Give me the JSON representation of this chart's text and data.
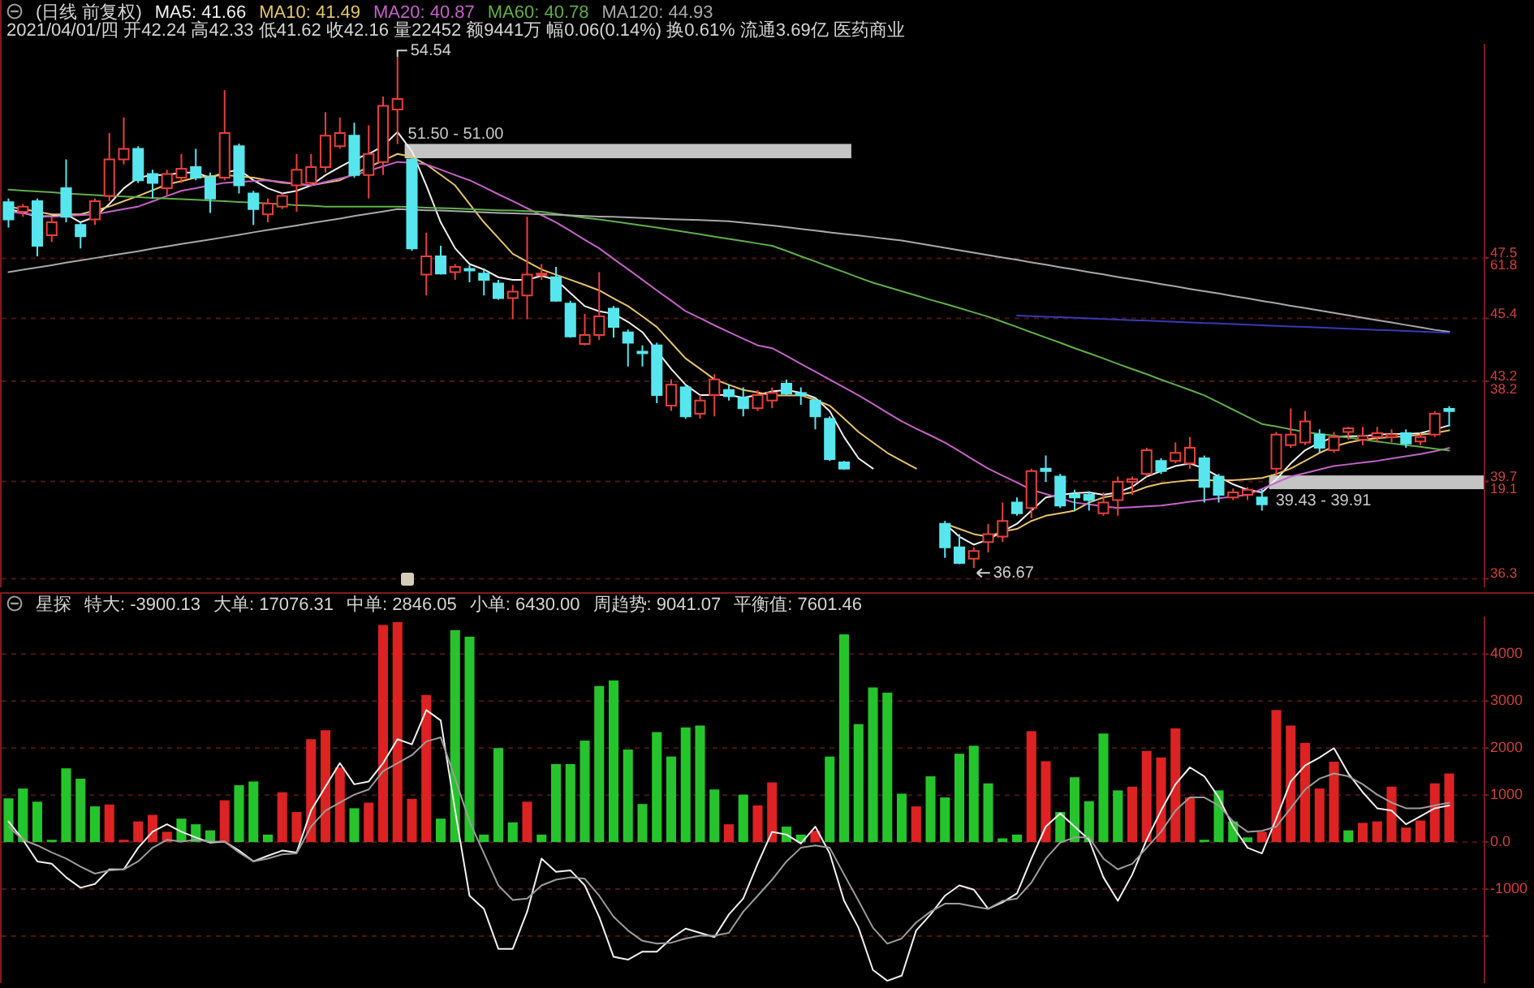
{
  "chart_data": [
    {
      "type": "candlestick",
      "title": "(日线 前复权)",
      "subtitle": "2021/04/01/四 开42.24 高42.33 低41.62 收42.16 量22452 额9441万 幅0.06(0.14%) 换0.61% 流通3.69亿 医药商业",
      "legend": "top left",
      "grid": "y",
      "ylim": [
        36,
        55
      ],
      "yticks": [
        47.5,
        45.4,
        43.2,
        39.7,
        36.3
      ],
      "y2lim": [
        -1.1,
        102.6
      ],
      "y2ticks": [
        61.8,
        38.2,
        19.1
      ],
      "categories": [
        null,
        null,
        null,
        null,
        null,
        null,
        null,
        null,
        null,
        null,
        null,
        null,
        null,
        null,
        null,
        null,
        null,
        null,
        null,
        null,
        null,
        null,
        null,
        null,
        null,
        null,
        null,
        null,
        null,
        null,
        null,
        null,
        null,
        null,
        null,
        null,
        null,
        null,
        null,
        null,
        null,
        null,
        null,
        null,
        null,
        null,
        null,
        null,
        null,
        null,
        null,
        null,
        null,
        null,
        null,
        null,
        null,
        null,
        null,
        null,
        null,
        null,
        null,
        null,
        null,
        null,
        null,
        null,
        null,
        null,
        null,
        null,
        null,
        null,
        null,
        null,
        null,
        null,
        null,
        null,
        null,
        null,
        null,
        null,
        null,
        null,
        null,
        null,
        null,
        null,
        null,
        null,
        null,
        null,
        null,
        null,
        null,
        null,
        null,
        null,
        null
      ],
      "ohlc": [
        [
          49.46,
          49.59,
          48.58,
          48.86
        ],
        [
          49.13,
          49.4,
          48.95,
          49.31
        ],
        [
          49.5,
          49.59,
          47.57,
          47.94
        ],
        [
          48.31,
          48.95,
          48.07,
          48.76
        ],
        [
          49.95,
          50.96,
          48.76,
          48.95
        ],
        [
          48.67,
          48.76,
          47.85,
          48.27
        ],
        [
          48.86,
          49.59,
          48.67,
          49.5
        ],
        [
          49.68,
          51.88,
          49.5,
          50.96
        ],
        [
          50.96,
          52.43,
          50.78,
          51.33
        ],
        [
          51.33,
          51.42,
          50.14,
          50.23
        ],
        [
          50.45,
          50.6,
          49.59,
          50.14
        ],
        [
          49.95,
          50.6,
          49.68,
          50.45
        ],
        [
          50.32,
          51.15,
          50.14,
          50.63
        ],
        [
          50.69,
          51.33,
          50.23,
          50.32
        ],
        [
          50.32,
          50.5,
          49.09,
          49.59
        ],
        [
          50.32,
          53.38,
          50.23,
          51.88
        ],
        [
          51.42,
          51.51,
          49.77,
          50.05
        ],
        [
          49.77,
          49.86,
          48.67,
          49.22
        ],
        [
          49.04,
          49.59,
          48.76,
          49.41
        ],
        [
          49.31,
          49.77,
          49.22,
          49.68
        ],
        [
          50.05,
          51.15,
          49.13,
          50.6
        ],
        [
          50.14,
          51.15,
          50.05,
          50.69
        ],
        [
          50.69,
          52.61,
          50.5,
          51.79
        ],
        [
          51.42,
          52.43,
          51.33,
          51.88
        ],
        [
          51.79,
          52.24,
          50.32,
          50.41
        ],
        [
          50.41,
          52.15,
          49.59,
          51.15
        ],
        [
          50.87,
          53.16,
          50.41,
          52.83
        ],
        [
          52.7,
          54.54,
          51.5,
          53.07
        ],
        [
          50.96,
          51.0,
          47.76,
          47.85
        ],
        [
          46.93,
          48.4,
          46.2,
          47.57
        ],
        [
          47.57,
          47.94,
          46.93,
          46.97
        ],
        [
          47.02,
          47.3,
          46.75,
          47.2
        ],
        [
          47.13,
          47.26,
          46.66,
          47.11
        ],
        [
          46.97,
          47.11,
          46.2,
          46.75
        ],
        [
          46.62,
          46.75,
          46.05,
          46.11
        ],
        [
          46.11,
          46.57,
          45.37,
          46.34
        ],
        [
          46.2,
          48.95,
          45.37,
          46.93
        ],
        [
          46.93,
          47.3,
          46.75,
          46.97
        ],
        [
          46.84,
          47.2,
          45.98,
          46.02
        ],
        [
          45.92,
          46.02,
          44.73,
          44.77
        ],
        [
          44.51,
          45.56,
          44.46,
          44.82
        ],
        [
          44.82,
          47.02,
          44.64,
          45.47
        ],
        [
          45.74,
          45.83,
          44.73,
          45.1
        ],
        [
          44.91,
          45.01,
          43.72,
          44.55
        ],
        [
          44.24,
          44.46,
          43.72,
          44.22
        ],
        [
          44.46,
          44.55,
          42.44,
          42.72
        ],
        [
          42.35,
          43.27,
          42.17,
          43.08
        ],
        [
          42.99,
          43.08,
          41.89,
          41.98
        ],
        [
          42.07,
          42.72,
          41.89,
          42.53
        ],
        [
          42.72,
          43.45,
          41.98,
          43.27
        ],
        [
          42.9,
          43.08,
          42.53,
          42.68
        ],
        [
          42.63,
          42.99,
          41.98,
          42.26
        ],
        [
          42.26,
          42.9,
          42.17,
          42.72
        ],
        [
          42.53,
          42.99,
          42.26,
          42.8
        ],
        [
          43.12,
          43.26,
          42.71,
          42.77
        ],
        [
          42.79,
          42.99,
          42.38,
          42.72
        ],
        [
          42.53,
          42.62,
          41.52,
          41.98
        ],
        [
          41.89,
          41.98,
          40.42,
          40.48
        ],
        [
          40.37,
          40.42,
          40.11,
          40.15
        ],
        null,
        null,
        null,
        null,
        null,
        null,
        [
          38.22,
          38.32,
          37.03,
          37.4
        ],
        [
          37.4,
          37.86,
          36.81,
          36.85
        ],
        [
          37.0,
          37.4,
          36.67,
          37.27
        ],
        [
          37.58,
          38.22,
          37.22,
          37.86
        ],
        [
          37.77,
          38.96,
          37.58,
          38.32
        ],
        [
          38.96,
          39.14,
          38.5,
          38.59
        ],
        [
          38.77,
          40.15,
          38.41,
          40.06
        ],
        [
          40.15,
          40.61,
          39.69,
          40.06
        ],
        [
          39.87,
          39.96,
          38.77,
          38.86
        ],
        [
          39.23,
          39.41,
          38.68,
          39.14
        ],
        [
          39.23,
          39.36,
          38.68,
          39.05
        ],
        [
          38.59,
          39.32,
          38.5,
          38.96
        ],
        [
          39.05,
          39.87,
          38.5,
          39.69
        ],
        [
          39.69,
          39.87,
          39.23,
          39.78
        ],
        [
          39.96,
          40.88,
          39.87,
          40.79
        ],
        [
          40.42,
          40.51,
          39.96,
          40.06
        ],
        [
          40.42,
          41.06,
          40.33,
          40.7
        ],
        [
          40.33,
          41.25,
          40.15,
          40.88
        ],
        [
          40.51,
          40.61,
          38.96,
          39.51
        ],
        [
          39.87,
          39.96,
          38.96,
          39.23
        ],
        [
          39.14,
          39.45,
          39.05,
          39.32
        ],
        [
          39.23,
          39.5,
          39.05,
          39.41
        ],
        [
          39.14,
          39.43,
          38.68,
          38.9
        ],
        [
          40.15,
          41.43,
          39.91,
          41.34
        ],
        [
          40.97,
          42.25,
          40.88,
          41.34
        ],
        [
          41.06,
          42.16,
          40.97,
          41.8
        ],
        [
          41.34,
          41.52,
          40.7,
          40.88
        ],
        [
          40.79,
          41.43,
          40.7,
          41.25
        ],
        [
          41.43,
          41.61,
          41.16,
          41.56
        ],
        [
          41.16,
          41.61,
          40.97,
          41.29
        ],
        [
          41.25,
          41.61,
          41.06,
          41.39
        ],
        [
          41.25,
          41.52,
          41.06,
          41.34
        ],
        [
          41.39,
          41.52,
          40.88,
          41.03
        ],
        [
          41.1,
          41.39,
          40.97,
          41.25
        ],
        [
          41.34,
          42.16,
          41.25,
          42.07
        ],
        [
          42.24,
          42.33,
          41.62,
          42.16
        ]
      ],
      "value_labels": [
        null,
        null,
        null,
        null,
        null,
        null,
        null,
        null,
        null,
        null,
        null,
        null,
        null,
        null,
        null,
        null,
        null,
        null,
        null,
        null,
        null,
        null,
        null,
        null,
        null,
        null,
        null,
        "54.54",
        null,
        null,
        null,
        null,
        null,
        null,
        null,
        null,
        null,
        null,
        null,
        null,
        null,
        null,
        null,
        null,
        null,
        null,
        null,
        null,
        null,
        null,
        null,
        null,
        null,
        null,
        null,
        null,
        null,
        null,
        null,
        null,
        null,
        null,
        null,
        null,
        null,
        null,
        null,
        "36.67",
        null,
        null,
        null,
        null,
        null,
        null,
        null,
        null,
        null,
        null,
        null,
        null,
        null,
        null,
        null,
        null,
        null,
        null,
        null,
        null,
        null,
        null,
        null,
        null,
        null,
        null,
        null,
        null,
        null,
        null,
        null,
        null,
        null
      ],
      "series": [
        {
          "name": "MA5: 41.66",
          "type": "line",
          "color": "#f0f0f0",
          "values": [
            49.22,
            49.1,
            48.95,
            48.98,
            49.04,
            48.76,
            48.95,
            49.4,
            49.95,
            50.32,
            50.41,
            50.41,
            50.5,
            50.5,
            50.32,
            50.5,
            50.6,
            50.23,
            49.95,
            49.77,
            49.86,
            50.05,
            50.41,
            50.69,
            50.96,
            51.15,
            51.42,
            51.92,
            51.24,
            50.05,
            48.76,
            47.85,
            47.3,
            47.11,
            46.84,
            46.75,
            46.75,
            46.89,
            46.75,
            46.29,
            45.83,
            45.65,
            45.56,
            45.28,
            44.92,
            44.27,
            43.63,
            43.08,
            42.72,
            42.72,
            42.72,
            42.63,
            42.72,
            42.85,
            42.9,
            42.8,
            42.62,
            42.16,
            41.25,
            40.51,
            40.15,
            null,
            null,
            null,
            null,
            38.22,
            37.77,
            37.49,
            37.67,
            37.95,
            38.22,
            38.68,
            39.14,
            39.23,
            39.29,
            39.32,
            39.23,
            39.32,
            39.51,
            39.87,
            40.06,
            40.24,
            40.33,
            40.15,
            39.87,
            39.6,
            39.41,
            39.32,
            39.78,
            40.33,
            40.79,
            41.06,
            41.25,
            41.28,
            41.28,
            41.34,
            41.36,
            41.36,
            41.39,
            41.52,
            41.66
          ]
        },
        {
          "name": "MA10: 41.49",
          "type": "line",
          "color": "#e6c36a",
          "values": [
            49.31,
            49.22,
            49.13,
            49.04,
            49.04,
            49.04,
            49.17,
            49.31,
            49.5,
            49.68,
            49.88,
            50.08,
            50.2,
            50.32,
            50.37,
            50.41,
            50.37,
            50.32,
            50.23,
            50.14,
            50.1,
            50.05,
            50.14,
            50.23,
            50.46,
            50.69,
            50.92,
            51.15,
            51.05,
            50.78,
            50.42,
            50.05,
            49.4,
            48.76,
            48.21,
            47.66,
            47.38,
            47.11,
            46.93,
            46.75,
            46.57,
            46.38,
            46.1,
            45.83,
            45.47,
            45.1,
            44.55,
            44.0,
            43.64,
            43.27,
            43.08,
            42.9,
            42.81,
            42.71,
            42.71,
            42.71,
            42.55,
            42.35,
            41.9,
            41.43,
            41.06,
            40.7,
            40.42,
            40.15,
            null,
            38.22,
            38.04,
            37.86,
            37.77,
            37.95,
            38.04,
            38.32,
            38.5,
            38.59,
            38.68,
            38.96,
            39.14,
            39.23,
            39.32,
            39.51,
            39.63,
            39.69,
            39.74,
            39.74,
            39.74,
            39.74,
            39.78,
            39.82,
            39.96,
            40.15,
            40.42,
            40.7,
            40.92,
            41.06,
            41.16,
            41.21,
            41.25,
            41.28,
            41.34,
            41.39,
            41.49
          ]
        },
        {
          "name": "MA20: 40.87",
          "type": "line",
          "color": "#c462c8",
          "values": [
            49.13,
            49.07,
            49.01,
            48.95,
            48.98,
            49.01,
            49.04,
            49.13,
            49.22,
            49.31,
            49.49,
            49.68,
            49.86,
            49.95,
            50.05,
            50.14,
            50.17,
            50.2,
            50.23,
            50.17,
            50.11,
            50.05,
            50.17,
            50.29,
            50.41,
            50.56,
            50.72,
            50.87,
            50.84,
            50.78,
            50.6,
            50.41,
            50.23,
            49.99,
            49.74,
            49.5,
            49.25,
            49.01,
            48.76,
            48.46,
            48.15,
            47.85,
            47.48,
            47.12,
            46.75,
            46.38,
            46.02,
            45.65,
            45.41,
            45.16,
            44.92,
            44.69,
            44.46,
            44.36,
            44.09,
            43.81,
            43.54,
            43.26,
            42.99,
            42.71,
            42.41,
            42.1,
            41.8,
            41.55,
            41.31,
            41.06,
            40.76,
            40.45,
            40.15,
            39.9,
            39.66,
            39.41,
            39.26,
            39.11,
            38.96,
            38.9,
            38.83,
            38.77,
            38.8,
            38.83,
            38.86,
            38.92,
            38.99,
            39.05,
            39.11,
            39.17,
            39.23,
            39.44,
            39.66,
            39.87,
            39.99,
            40.12,
            40.24,
            40.3,
            40.36,
            40.42,
            40.5,
            40.58,
            40.66,
            40.76,
            40.87
          ]
        },
        {
          "name": "MA60: 40.78",
          "type": "line",
          "color": "#5fae4a",
          "values": [
            49.9,
            49.87,
            49.84,
            49.81,
            49.77,
            49.74,
            49.71,
            49.68,
            49.66,
            49.64,
            49.61,
            49.59,
            49.57,
            49.55,
            49.52,
            49.5,
            49.47,
            49.45,
            49.42,
            49.39,
            49.36,
            49.34,
            49.31,
            49.31,
            49.31,
            49.31,
            49.31,
            49.31,
            49.29,
            49.27,
            49.26,
            49.24,
            49.22,
            49.2,
            49.18,
            49.17,
            49.15,
            49.13,
            49.06,
            48.99,
            48.92,
            48.86,
            48.79,
            48.72,
            48.65,
            48.58,
            48.5,
            48.42,
            48.34,
            48.26,
            48.18,
            48.1,
            48.02,
            47.94,
            47.76,
            47.57,
            47.39,
            47.2,
            47.02,
            46.83,
            46.65,
            46.5,
            46.35,
            46.2,
            46.05,
            45.91,
            45.76,
            45.61,
            45.46,
            45.28,
            45.1,
            44.91,
            44.73,
            44.55,
            44.36,
            44.18,
            44.0,
            43.81,
            43.63,
            43.45,
            43.26,
            43.08,
            42.9,
            42.71,
            42.46,
            42.21,
            41.96,
            41.71,
            41.62,
            41.52,
            41.43,
            41.36,
            41.3,
            41.23,
            41.16,
            41.1,
            41.03,
            40.97,
            40.91,
            40.84,
            40.78
          ]
        },
        {
          "name": "MA120: 44.93",
          "type": "line",
          "color": "#a8a8a8",
          "values": [
            47.02,
            47.1,
            47.18,
            47.26,
            47.35,
            47.43,
            47.51,
            47.59,
            47.67,
            47.75,
            47.84,
            47.92,
            48.0,
            48.08,
            48.16,
            48.24,
            48.32,
            48.41,
            48.49,
            48.57,
            48.65,
            48.73,
            48.81,
            48.89,
            48.98,
            49.06,
            49.14,
            49.22,
            49.2,
            49.18,
            49.17,
            49.15,
            49.13,
            49.11,
            49.09,
            49.07,
            49.06,
            49.04,
            49.02,
            49.0,
            48.98,
            48.96,
            48.95,
            48.93,
            48.91,
            48.89,
            48.87,
            48.85,
            48.84,
            48.82,
            48.8,
            48.75,
            48.7,
            48.65,
            48.59,
            48.53,
            48.47,
            48.41,
            48.35,
            48.3,
            48.24,
            48.18,
            48.12,
            48.04,
            47.95,
            47.87,
            47.78,
            47.7,
            47.61,
            47.53,
            47.45,
            47.36,
            47.28,
            47.19,
            47.11,
            47.02,
            46.94,
            46.85,
            46.77,
            46.69,
            46.6,
            46.52,
            46.43,
            46.35,
            46.27,
            46.18,
            46.1,
            46.01,
            45.93,
            45.84,
            45.76,
            45.68,
            45.59,
            45.51,
            45.42,
            45.34,
            45.26,
            45.17,
            45.09,
            45.0,
            44.93
          ]
        },
        {
          "type": "line",
          "color": "#3838b8",
          "values": [
            null,
            null,
            null,
            null,
            null,
            null,
            null,
            null,
            null,
            null,
            null,
            null,
            null,
            null,
            null,
            null,
            null,
            null,
            null,
            null,
            null,
            null,
            null,
            null,
            null,
            null,
            null,
            null,
            null,
            null,
            null,
            null,
            null,
            null,
            null,
            null,
            null,
            null,
            null,
            null,
            null,
            null,
            null,
            null,
            null,
            null,
            null,
            null,
            null,
            null,
            null,
            null,
            null,
            null,
            null,
            null,
            null,
            null,
            null,
            null,
            null,
            null,
            null,
            null,
            null,
            null,
            null,
            null,
            null,
            null,
            45.5,
            45.48,
            45.46,
            45.44,
            45.42,
            45.4,
            45.38,
            45.36,
            45.34,
            45.32,
            45.3,
            45.28,
            45.26,
            45.24,
            45.22,
            45.2,
            45.18,
            45.16,
            45.14,
            45.12,
            45.1,
            45.08,
            45.06,
            45.04,
            45.02,
            45.0,
            44.98,
            44.96,
            44.94,
            44.92,
            44.9
          ]
        }
      ],
      "bands": [
        {
          "axis": "y",
          "from": 51.0,
          "to": 51.5,
          "label": "51.50 - 51.00",
          "color": "#c4c4c4"
        },
        {
          "axis": "y",
          "from": 39.43,
          "to": 39.91,
          "label": "39.43 - 39.91",
          "color": "#c4c4c4"
        }
      ]
    },
    {
      "type": "bar",
      "title": "星探",
      "grid": "y",
      "ylim": [
        -3000,
        4800
      ],
      "yticks": [
        4000,
        3000,
        2000,
        1000,
        {
          "value": 0,
          "label": "0.0"
        },
        -1000,
        {
          "value": -2000,
          "label": null
        }
      ],
      "categories": [
        null,
        null,
        null,
        null,
        null,
        null,
        null,
        null,
        null,
        null,
        null,
        null,
        null,
        null,
        null,
        null,
        null,
        null,
        null,
        null,
        null,
        null,
        null,
        null,
        null,
        null,
        null,
        null,
        null,
        null,
        null,
        null,
        null,
        null,
        null,
        null,
        null,
        null,
        null,
        null,
        null,
        null,
        null,
        null,
        null,
        null,
        null,
        null,
        null,
        null,
        null,
        null,
        null,
        null,
        null,
        null,
        null,
        null,
        null,
        null,
        null,
        null,
        null,
        null,
        null,
        null,
        null,
        null,
        null,
        null,
        null,
        null,
        null,
        null,
        null,
        null,
        null,
        null,
        null,
        null,
        null,
        null,
        null,
        null,
        null,
        null,
        null,
        null,
        null,
        null,
        null,
        null,
        null,
        null,
        null,
        null,
        null,
        null,
        null,
        null,
        null
      ],
      "series": [
        {
          "values": [
            930,
            1140,
            860,
            50,
            1570,
            1350,
            760,
            800,
            50,
            440,
            580,
            220,
            500,
            380,
            250,
            890,
            1210,
            1290,
            160,
            1060,
            640,
            2190,
            2380,
            1590,
            720,
            840,
            4620,
            4680,
            920,
            3130,
            500,
            4510,
            4370,
            160,
            2000,
            420,
            860,
            160,
            1660,
            1660,
            2160,
            3320,
            3440,
            1970,
            810,
            2340,
            1820,
            2440,
            2480,
            1120,
            380,
            1010,
            780,
            1270,
            330,
            160,
            240,
            1820,
            4420,
            2510,
            3290,
            3180,
            1030,
            760,
            1400,
            950,
            1880,
            2050,
            1250,
            80,
            160,
            2360,
            1720,
            640,
            1380,
            870,
            2310,
            1100,
            1180,
            1940,
            1800,
            2420,
            950,
            50,
            1100,
            440,
            100,
            220,
            2810,
            2480,
            2110,
            1140,
            1710,
            250,
            410,
            440,
            1180,
            310,
            460,
            1250,
            1460
          ],
          "colors": [
            "#26c42c",
            "#26c42c",
            "#26c42c",
            "#26c42c",
            "#26c42c",
            "#26c42c",
            "#26c42c",
            "#dc2222",
            "#dc2222",
            "#dc2222",
            "#dc2222",
            "#dc2222",
            "#26c42c",
            "#26c42c",
            "#26c42c",
            "#dc2222",
            "#26c42c",
            "#26c42c",
            "#26c42c",
            "#dc2222",
            "#dc2222",
            "#dc2222",
            "#dc2222",
            "#dc2222",
            "#26c42c",
            "#dc2222",
            "#dc2222",
            "#dc2222",
            "#dc2222",
            "#dc2222",
            "#26c42c",
            "#26c42c",
            "#26c42c",
            "#26c42c",
            "#26c42c",
            "#26c42c",
            "#dc2222",
            "#26c42c",
            "#26c42c",
            "#26c42c",
            "#26c42c",
            "#26c42c",
            "#26c42c",
            "#26c42c",
            "#26c42c",
            "#26c42c",
            "#26c42c",
            "#26c42c",
            "#26c42c",
            "#26c42c",
            "#dc2222",
            "#26c42c",
            "#dc2222",
            "#dc2222",
            "#26c42c",
            "#26c42c",
            "#dc2222",
            "#26c42c",
            "#26c42c",
            "#26c42c",
            "#26c42c",
            "#26c42c",
            "#26c42c",
            "#dc2222",
            "#26c42c",
            "#26c42c",
            "#26c42c",
            "#26c42c",
            "#26c42c",
            "#26c42c",
            "#26c42c",
            "#dc2222",
            "#dc2222",
            "#26c42c",
            "#26c42c",
            "#26c42c",
            "#26c42c",
            "#26c42c",
            "#dc2222",
            "#dc2222",
            "#dc2222",
            "#dc2222",
            "#dc2222",
            "#26c42c",
            "#26c42c",
            "#26c42c",
            "#26c42c",
            "#dc2222",
            "#dc2222",
            "#dc2222",
            "#dc2222",
            "#dc2222",
            "#dc2222",
            "#26c42c",
            "#dc2222",
            "#dc2222",
            "#dc2222",
            "#dc2222",
            "#dc2222",
            "#dc2222",
            "#dc2222"
          ]
        },
        {
          "type": "line",
          "color": "#f2f2f2",
          "values": [
            440,
            50,
            -410,
            -460,
            -750,
            -970,
            -890,
            -580,
            -580,
            -120,
            220,
            380,
            220,
            100,
            -10,
            10,
            -180,
            -410,
            -290,
            -180,
            -220,
            670,
            1180,
            1680,
            1230,
            1290,
            1680,
            2190,
            2080,
            2810,
            2590,
            670,
            -1140,
            -1420,
            -2270,
            -2270,
            -1480,
            -350,
            -630,
            -600,
            -920,
            -1590,
            -2440,
            -2500,
            -2330,
            -2330,
            -2050,
            -1840,
            -1930,
            -2020,
            -1540,
            -1200,
            -460,
            220,
            160,
            -30,
            330,
            -240,
            -1250,
            -1820,
            -2720,
            -2950,
            -2840,
            -1880,
            -1540,
            -1140,
            -920,
            -1010,
            -1420,
            -1280,
            -1090,
            -350,
            330,
            610,
            330,
            50,
            -750,
            -1250,
            -690,
            50,
            670,
            1230,
            1590,
            1400,
            950,
            330,
            -120,
            -240,
            500,
            1290,
            1630,
            1800,
            2000,
            1460,
            1060,
            720,
            670,
            380,
            550,
            720,
            780
          ]
        },
        {
          "type": "line",
          "color": "#9c9c9c",
          "values": [
            330,
            50,
            -70,
            -220,
            -350,
            -520,
            -670,
            -600,
            -580,
            -410,
            -120,
            50,
            10,
            50,
            10,
            10,
            -220,
            -410,
            -350,
            -260,
            -240,
            330,
            670,
            840,
            1010,
            1120,
            1510,
            1680,
            1850,
            2140,
            2230,
            1350,
            440,
            -240,
            -920,
            -1230,
            -1200,
            -920,
            -800,
            -750,
            -780,
            -1140,
            -1590,
            -1880,
            -2100,
            -2160,
            -2140,
            -2050,
            -1990,
            -1990,
            -1930,
            -1480,
            -1140,
            -800,
            -410,
            -120,
            -70,
            -120,
            -690,
            -1250,
            -1820,
            -2160,
            -2050,
            -1710,
            -1480,
            -1310,
            -1310,
            -1370,
            -1420,
            -1250,
            -1200,
            -860,
            -350,
            -10,
            100,
            100,
            -350,
            -580,
            -460,
            -120,
            220,
            670,
            950,
            950,
            780,
            440,
            220,
            240,
            330,
            720,
            1120,
            1350,
            1460,
            1400,
            1230,
            1010,
            840,
            720,
            720,
            780,
            840
          ]
        }
      ],
      "annotations": [
        "特大: -3900.13",
        "大单: 17076.31",
        "中单: 2846.05",
        "小单: 6430.00",
        "周趋势: 9041.07",
        "平衡值: 7601.46"
      ]
    }
  ]
}
